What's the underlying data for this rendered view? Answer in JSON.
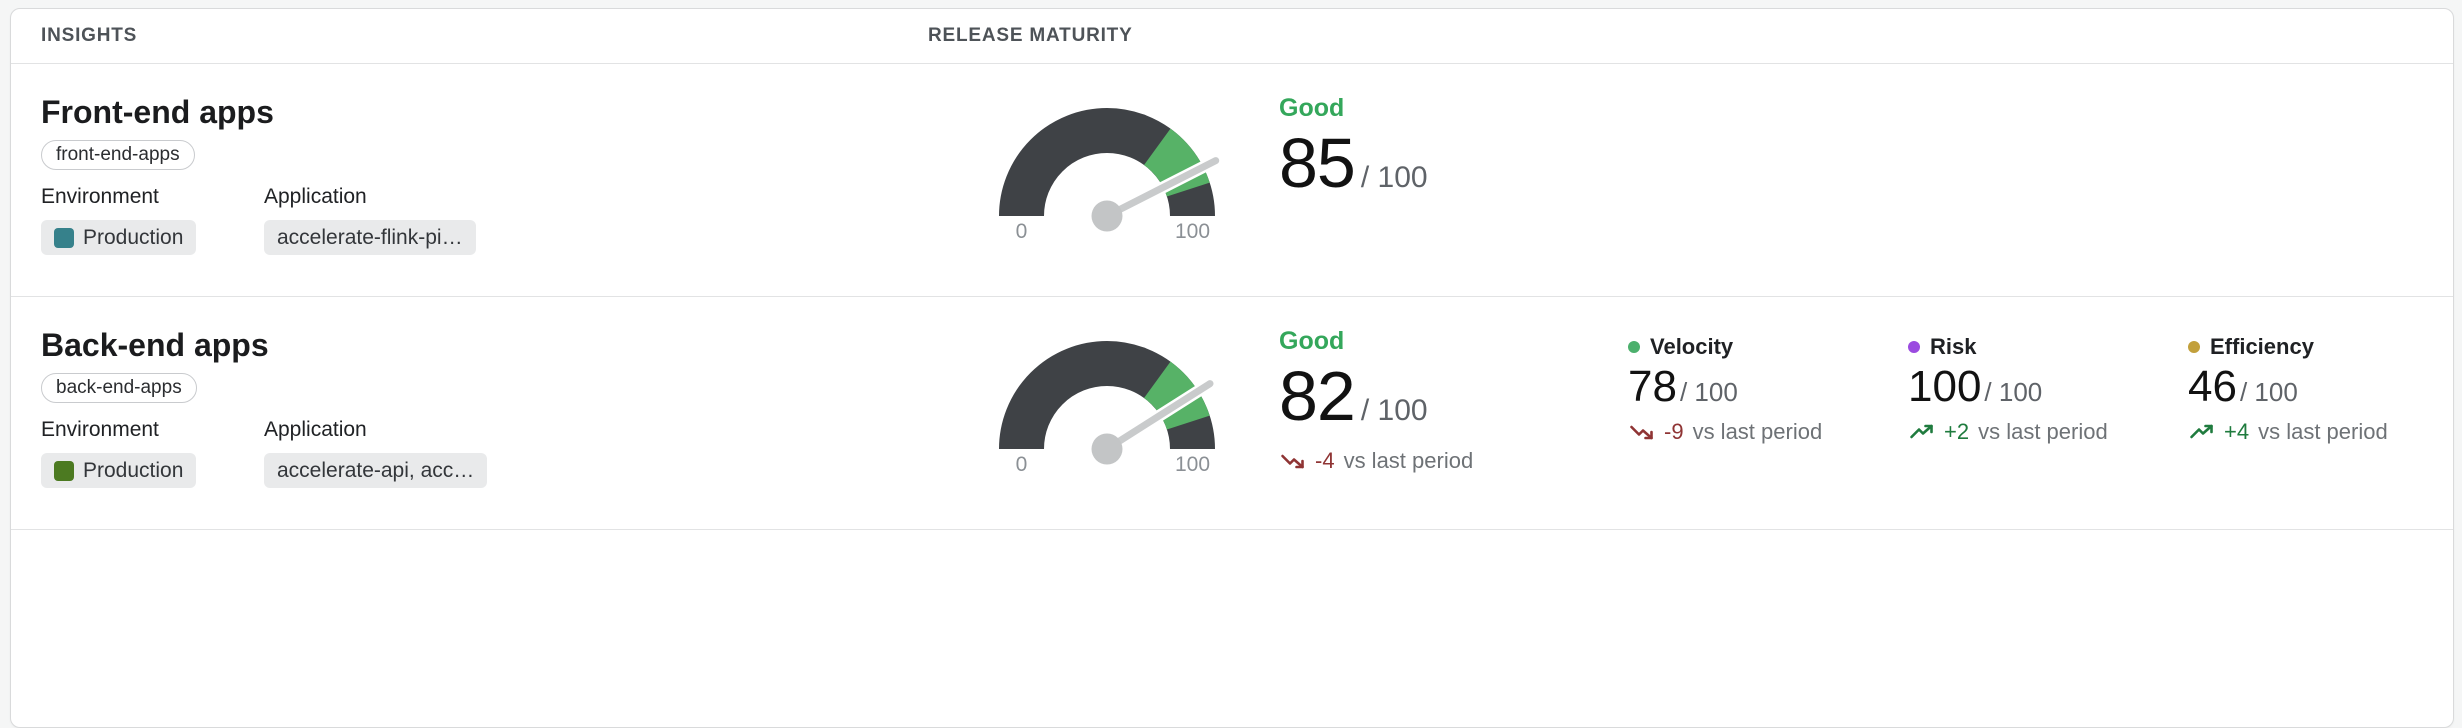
{
  "header": {
    "insights": "INSIGHTS",
    "release_maturity": "RELEASE MATURITY"
  },
  "rows": [
    {
      "title": "Front-end apps",
      "tag": "front-end-apps",
      "environment_label": "Environment",
      "application_label": "Application",
      "environment": {
        "name": "Production",
        "color": "#36818B"
      },
      "application": "accelerate-flink-pi…",
      "gauge": {
        "value": 85,
        "min": 0,
        "max": 100,
        "min_label": "0",
        "max_label": "100",
        "band_start": 70,
        "band_end": 90,
        "band_color": "#57B267",
        "track_color": "#3F4246"
      },
      "score": {
        "status": "Good",
        "value": "85",
        "denominator": "/ 100"
      }
    },
    {
      "title": "Back-end apps",
      "tag": "back-end-apps",
      "environment_label": "Environment",
      "application_label": "Application",
      "environment": {
        "name": "Production",
        "color": "#4C7A21"
      },
      "application": "accelerate-api, acc…",
      "gauge": {
        "value": 82,
        "min": 0,
        "max": 100,
        "min_label": "0",
        "max_label": "100",
        "band_start": 70,
        "band_end": 90,
        "band_color": "#57B267",
        "track_color": "#3F4246"
      },
      "score": {
        "status": "Good",
        "value": "82",
        "denominator": "/ 100",
        "trend": {
          "direction": "down",
          "delta": "-4",
          "suffix": "vs last period"
        }
      },
      "metrics": [
        {
          "name": "Velocity",
          "dot_color": "#4CB06D",
          "value": "78",
          "denominator": "/ 100",
          "trend": {
            "direction": "down",
            "delta": "-9",
            "suffix": "vs last period"
          }
        },
        {
          "name": "Risk",
          "dot_color": "#9B4BE0",
          "value": "100",
          "denominator": "/ 100",
          "trend": {
            "direction": "up",
            "delta": "+2",
            "suffix": "vs last period"
          }
        },
        {
          "name": "Efficiency",
          "dot_color": "#C2A03C",
          "value": "46",
          "denominator": "/ 100",
          "trend": {
            "direction": "up",
            "delta": "+4",
            "suffix": "vs last period"
          }
        }
      ]
    }
  ]
}
